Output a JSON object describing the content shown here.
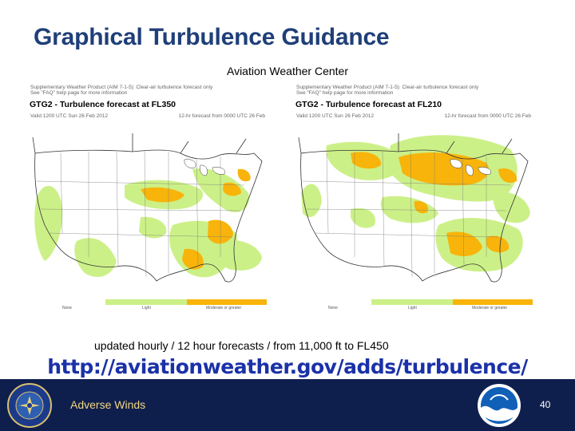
{
  "slide": {
    "title": "Graphical Turbulence Guidance",
    "subtitle": "Aviation Weather Center",
    "footnote": "updated hourly  / 12 hour forecasts / from 11,000 ft to FL450",
    "url": "http://aviationweather.gov/adds/turbulence/",
    "footer_title": "Adverse Winds",
    "page_number": "40"
  },
  "panels": [
    {
      "line1": "Supplementary Weather Product (AIM 7-1-5): Clear-air turbulence forecast only",
      "line2": "See \"FAQ\" help page for more information",
      "heading": "GTG2 - Turbulence forecast at FL350",
      "valid": "Valid 1200 UTC Sun 26 Feb 2012",
      "forecast": "12-hr forecast from 0000 UTC 26 Feb",
      "legend": [
        "None",
        "Light",
        "Moderate or greater"
      ]
    },
    {
      "line1": "Supplementary Weather Product (AIM 7-1-5): Clear-air turbulence forecast only",
      "line2": "See \"FAQ\" help page for more information",
      "heading": "GTG2 - Turbulence forecast at FL210",
      "valid": "Valid 1200 UTC Sun 26 Feb 2012",
      "forecast": "12-hr forecast from 0000 UTC 26 Feb",
      "legend": [
        "None",
        "Light",
        "Moderate or greater"
      ]
    }
  ],
  "colors": {
    "title": "#1f3f78",
    "url": "#1a31a8",
    "footer_bg": "#0f1f4d",
    "footer_text": "#f2d680",
    "light_turbulence": "#ccf088",
    "moderate_turbulence": "#f8b40a"
  }
}
